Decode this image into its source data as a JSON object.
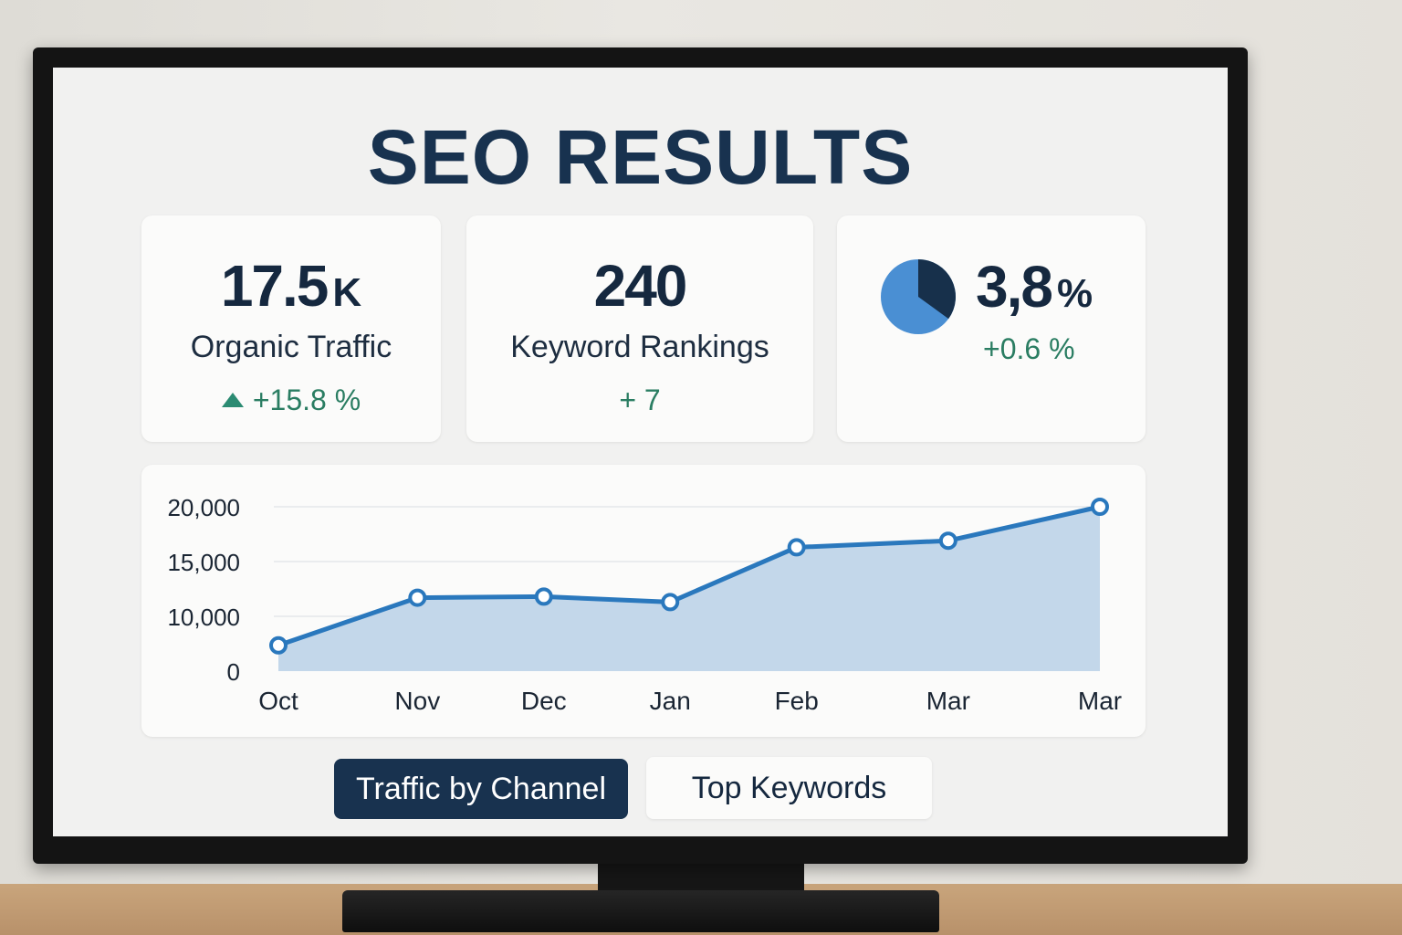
{
  "page": {
    "title": "SEO RESULTS"
  },
  "kpis": [
    {
      "value": "17.5",
      "unit": "K",
      "label": "Organic Traffic",
      "change": "+15.8 %",
      "trend_icon": "triangle-up-icon"
    },
    {
      "value": "240",
      "unit": "",
      "label": "Keyword Rankings",
      "change": "+ 7"
    },
    {
      "value": "3,8",
      "unit": "%",
      "label": "",
      "change": "+0.6 %",
      "pie_icon": "pie-chart-icon",
      "pie_fraction": 0.35
    }
  ],
  "chart_data": {
    "type": "area",
    "categories": [
      "Oct",
      "Nov",
      "Dec",
      "Jan",
      "Feb",
      "Mar",
      "Mar"
    ],
    "x_positions": [
      0.0,
      1.1,
      2.1,
      3.1,
      4.1,
      5.3,
      6.5
    ],
    "values": [
      4700,
      11700,
      11800,
      11300,
      16300,
      16900,
      20000
    ],
    "yticks": [
      0,
      10000,
      15000,
      20000
    ],
    "ytick_labels": [
      "0",
      "10,000",
      "15,000",
      "20,000"
    ],
    "grid": true,
    "title": "",
    "xlabel": "",
    "ylabel": ""
  },
  "tabs": [
    {
      "label": "Traffic by Channel",
      "active": true
    },
    {
      "label": "Top Keywords",
      "active": false
    }
  ],
  "colors": {
    "title": "#18324f",
    "line": "#2a78bd",
    "area": "#c3d7ea",
    "positive": "#2a7d62",
    "pie_main": "#4a8fd3",
    "pie_slice": "#17304b"
  }
}
